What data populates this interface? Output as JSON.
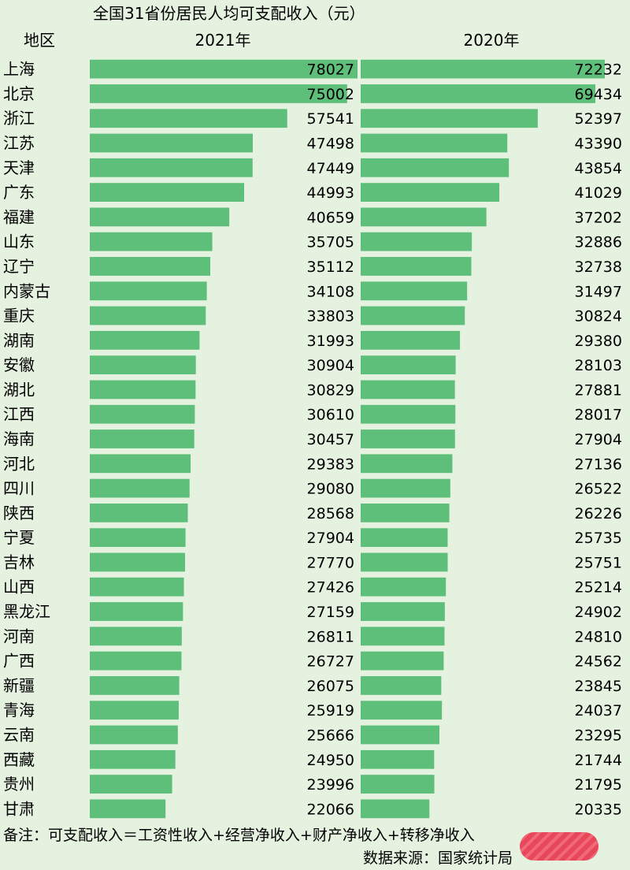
{
  "chart_data": {
    "type": "bar",
    "title": "全国31省份居民人均可支配收入（元）",
    "category_header": "地区",
    "categories": [
      "上海",
      "北京",
      "浙江",
      "江苏",
      "天津",
      "广东",
      "福建",
      "山东",
      "辽宁",
      "内蒙古",
      "重庆",
      "湖南",
      "安徽",
      "湖北",
      "江西",
      "海南",
      "河北",
      "四川",
      "陕西",
      "宁夏",
      "吉林",
      "山西",
      "黑龙江",
      "河南",
      "广西",
      "新疆",
      "青海",
      "云南",
      "西藏",
      "贵州",
      "甘肃"
    ],
    "series": [
      {
        "name": "2021年",
        "values": [
          78027,
          75002,
          57541,
          47498,
          47449,
          44993,
          40659,
          35705,
          35112,
          34108,
          33803,
          31993,
          30904,
          30829,
          30610,
          30457,
          29383,
          29080,
          28568,
          27904,
          27770,
          27426,
          27159,
          26811,
          26727,
          26075,
          25919,
          25666,
          24950,
          23996,
          22066
        ]
      },
      {
        "name": "2020年",
        "values": [
          72232,
          69434,
          52397,
          43390,
          43854,
          41029,
          37202,
          32886,
          32738,
          31497,
          30824,
          29380,
          28103,
          27881,
          28017,
          27904,
          27136,
          26522,
          26226,
          25735,
          25751,
          25214,
          24902,
          24810,
          24562,
          23845,
          24037,
          23295,
          21744,
          21795,
          20335
        ]
      }
    ],
    "bar_color": "#5dbf7a",
    "note": "备注：可支配收入＝工资性收入+经营净收入+财产净收入+转移净收入",
    "source": "数据来源：国家统计局"
  }
}
